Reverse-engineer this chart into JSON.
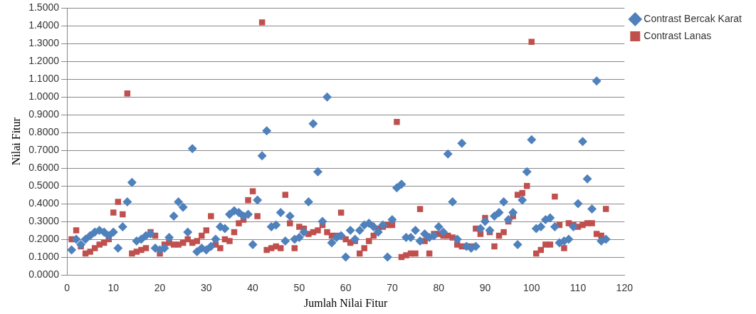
{
  "chart_data": {
    "type": "scatter",
    "xlabel": "Jumlah Nilai Fitur",
    "ylabel": "Nilai Fitur",
    "xlim": [
      0,
      120
    ],
    "xticks": [
      0,
      10,
      20,
      30,
      40,
      50,
      60,
      70,
      80,
      90,
      100,
      110,
      120
    ],
    "ylim": [
      0,
      1.5
    ],
    "yticks": [
      {
        "value": 0,
        "label": "0.0000"
      },
      {
        "value": 0.1,
        "label": "0.1000"
      },
      {
        "value": 0.2,
        "label": "0.2000"
      },
      {
        "value": 0.3,
        "label": "0.3000"
      },
      {
        "value": 0.4,
        "label": "0.4000"
      },
      {
        "value": 0.5,
        "label": "0.5000"
      },
      {
        "value": 0.6,
        "label": "0.6000"
      },
      {
        "value": 0.7,
        "label": "0.7000"
      },
      {
        "value": 0.8,
        "label": "0.8000"
      },
      {
        "value": 0.9,
        "label": "0.9000"
      },
      {
        "value": 1.0,
        "label": "1.0000"
      },
      {
        "value": 1.1,
        "label": "1.1000"
      },
      {
        "value": 1.2,
        "label": "1.2000"
      },
      {
        "value": 1.3,
        "label": "1.3000"
      },
      {
        "value": 1.4,
        "label": "1.4000"
      },
      {
        "value": 1.5,
        "label": "1.5000"
      }
    ],
    "grid": "y",
    "legend": "right",
    "x": [
      1,
      2,
      3,
      4,
      5,
      6,
      7,
      8,
      9,
      10,
      11,
      12,
      13,
      14,
      15,
      16,
      17,
      18,
      19,
      20,
      21,
      22,
      23,
      24,
      25,
      26,
      27,
      28,
      29,
      30,
      31,
      32,
      33,
      34,
      35,
      36,
      37,
      38,
      39,
      40,
      41,
      42,
      43,
      44,
      45,
      46,
      47,
      48,
      49,
      50,
      51,
      52,
      53,
      54,
      55,
      56,
      57,
      58,
      59,
      60,
      61,
      62,
      63,
      64,
      65,
      66,
      67,
      68,
      69,
      70,
      71,
      72,
      73,
      74,
      75,
      76,
      77,
      78,
      79,
      80,
      81,
      82,
      83,
      84,
      85,
      86,
      87,
      88,
      89,
      90,
      91,
      92,
      93,
      94,
      95,
      96,
      97,
      98,
      99,
      100,
      101,
      102,
      103,
      104,
      105,
      106,
      107,
      108,
      109,
      110,
      111,
      112,
      113,
      114,
      115,
      116
    ],
    "series": [
      {
        "name": "Contrast Bercak Karat",
        "color": "#4f81bd",
        "marker": "diamond",
        "values": [
          0.14,
          0.2,
          0.17,
          0.2,
          0.22,
          0.24,
          0.25,
          0.24,
          0.22,
          0.24,
          0.15,
          0.27,
          0.41,
          0.52,
          0.19,
          0.2,
          0.22,
          0.23,
          0.15,
          0.14,
          0.15,
          0.21,
          0.33,
          0.41,
          0.38,
          0.24,
          0.71,
          0.13,
          0.15,
          0.14,
          0.16,
          0.2,
          0.27,
          0.26,
          0.34,
          0.36,
          0.35,
          0.33,
          0.34,
          0.17,
          0.42,
          0.67,
          0.81,
          0.27,
          0.28,
          0.35,
          0.19,
          0.33,
          0.2,
          0.21,
          0.24,
          0.41,
          0.85,
          0.58,
          0.3,
          1.0,
          0.18,
          0.21,
          0.22,
          0.1,
          0.25,
          0.2,
          0.25,
          0.28,
          0.29,
          0.27,
          0.24,
          0.28,
          0.1,
          0.31,
          0.49,
          0.51,
          0.21,
          0.21,
          0.25,
          0.19,
          0.23,
          0.21,
          0.22,
          0.27,
          0.24,
          0.68,
          0.41,
          0.2,
          0.74,
          0.16,
          0.15,
          0.16,
          0.26,
          0.3,
          0.25,
          0.33,
          0.35,
          0.41,
          0.31,
          0.35,
          0.17,
          0.42,
          0.58,
          0.76,
          0.26,
          0.27,
          0.31,
          0.32,
          0.27,
          0.18,
          0.19,
          0.2,
          0.27,
          0.4,
          0.75,
          0.54,
          0.37,
          1.09,
          0.19,
          0.2
        ]
      },
      {
        "name": "Contrast Lanas",
        "color": "#c0504d",
        "marker": "square",
        "values": [
          0.2,
          0.25,
          0.16,
          0.12,
          0.13,
          0.15,
          0.17,
          0.18,
          0.2,
          0.35,
          0.41,
          0.34,
          1.02,
          0.12,
          0.13,
          0.14,
          0.15,
          0.24,
          0.22,
          0.12,
          0.17,
          0.18,
          0.17,
          0.17,
          0.18,
          0.2,
          0.18,
          0.19,
          0.22,
          0.25,
          0.33,
          0.17,
          0.15,
          0.2,
          0.19,
          0.24,
          0.29,
          0.31,
          0.42,
          0.47,
          0.33,
          1.42,
          0.14,
          0.15,
          0.16,
          0.15,
          0.45,
          0.29,
          0.15,
          0.27,
          0.26,
          0.23,
          0.24,
          0.25,
          0.28,
          0.24,
          0.22,
          0.22,
          0.35,
          0.2,
          0.18,
          0.19,
          0.12,
          0.15,
          0.19,
          0.22,
          0.26,
          0.27,
          0.28,
          0.28,
          0.86,
          0.1,
          0.11,
          0.12,
          0.12,
          0.37,
          0.19,
          0.12,
          0.23,
          0.23,
          0.22,
          0.22,
          0.21,
          0.17,
          0.16,
          0.16,
          0.16,
          0.26,
          0.23,
          0.32,
          0.24,
          0.16,
          0.22,
          0.24,
          0.3,
          0.33,
          0.45,
          0.46,
          0.5,
          1.31,
          0.12,
          0.14,
          0.17,
          0.17,
          0.44,
          0.28,
          0.15,
          0.29,
          0.28,
          0.27,
          0.28,
          0.29,
          0.29,
          0.23,
          0.22,
          0.37
        ]
      }
    ]
  }
}
